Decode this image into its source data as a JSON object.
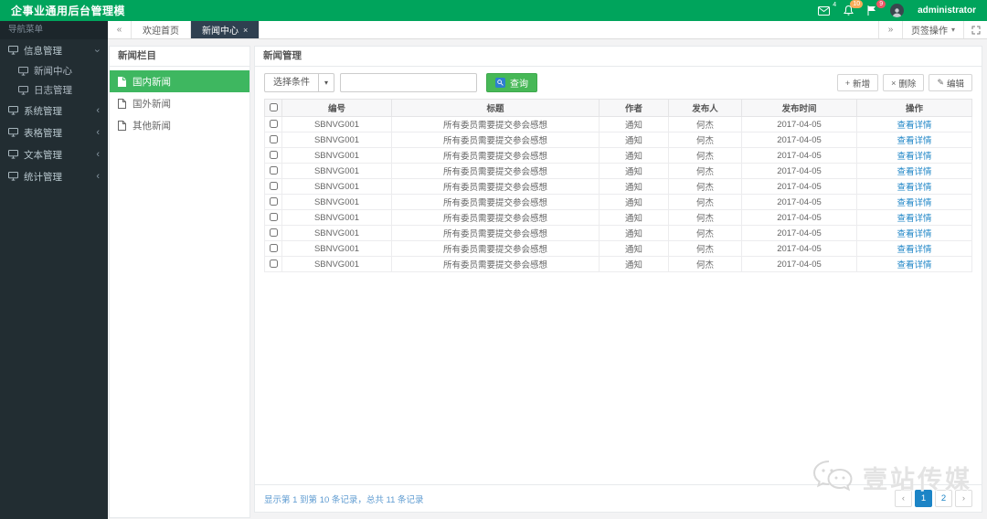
{
  "topbar": {
    "title": "企事业通用后台管理模",
    "mail_count": "4",
    "bell_count": "10",
    "flag_count": "9",
    "username": "administrator"
  },
  "sidebar": {
    "header": "导航菜单",
    "items": [
      {
        "label": "信息管理",
        "expanded": true,
        "children": [
          "新闻中心",
          "日志管理"
        ]
      },
      {
        "label": "系统管理",
        "expanded": false
      },
      {
        "label": "表格管理",
        "expanded": false
      },
      {
        "label": "文本管理",
        "expanded": false
      },
      {
        "label": "统计管理",
        "expanded": false
      }
    ]
  },
  "tabbar": {
    "scroll_left": "«",
    "scroll_right": "»",
    "tabs": [
      {
        "label": "欢迎首页",
        "active": false,
        "closable": false
      },
      {
        "label": "新闻中心",
        "active": true,
        "closable": true,
        "close_glyph": "×"
      }
    ],
    "ops_label": "页签操作",
    "ops_caret": "▾"
  },
  "news_panel": {
    "title": "新闻栏目",
    "items": [
      {
        "label": "国内新闻",
        "active": true
      },
      {
        "label": "国外新闻",
        "active": false
      },
      {
        "label": "其他新闻",
        "active": false
      }
    ]
  },
  "main": {
    "title": "新闻管理",
    "filter_label": "选择条件",
    "search_value": "",
    "query_button": "查询",
    "add_button": "新增",
    "delete_button": "删除",
    "edit_button": "编辑",
    "add_glyph": "+",
    "delete_glyph": "×",
    "edit_glyph": "✎",
    "table": {
      "headers": [
        "编号",
        "标题",
        "作者",
        "发布人",
        "发布时间",
        "操作"
      ],
      "rows": [
        {
          "id": "SBNVG001",
          "title": "所有委员需要提交参会感想",
          "author": "通知",
          "publisher": "何杰",
          "date": "2017-04-05",
          "action": "查看详情"
        },
        {
          "id": "SBNVG001",
          "title": "所有委员需要提交参会感想",
          "author": "通知",
          "publisher": "何杰",
          "date": "2017-04-05",
          "action": "查看详情"
        },
        {
          "id": "SBNVG001",
          "title": "所有委员需要提交参会感想",
          "author": "通知",
          "publisher": "何杰",
          "date": "2017-04-05",
          "action": "查看详情"
        },
        {
          "id": "SBNVG001",
          "title": "所有委员需要提交参会感想",
          "author": "通知",
          "publisher": "何杰",
          "date": "2017-04-05",
          "action": "查看详情"
        },
        {
          "id": "SBNVG001",
          "title": "所有委员需要提交参会感想",
          "author": "通知",
          "publisher": "何杰",
          "date": "2017-04-05",
          "action": "查看详情"
        },
        {
          "id": "SBNVG001",
          "title": "所有委员需要提交参会感想",
          "author": "通知",
          "publisher": "何杰",
          "date": "2017-04-05",
          "action": "查看详情"
        },
        {
          "id": "SBNVG001",
          "title": "所有委员需要提交参会感想",
          "author": "通知",
          "publisher": "何杰",
          "date": "2017-04-05",
          "action": "查看详情"
        },
        {
          "id": "SBNVG001",
          "title": "所有委员需要提交参会感想",
          "author": "通知",
          "publisher": "何杰",
          "date": "2017-04-05",
          "action": "查看详情"
        },
        {
          "id": "SBNVG001",
          "title": "所有委员需要提交参会感想",
          "author": "通知",
          "publisher": "何杰",
          "date": "2017-04-05",
          "action": "查看详情"
        },
        {
          "id": "SBNVG001",
          "title": "所有委员需要提交参会感想",
          "author": "通知",
          "publisher": "何杰",
          "date": "2017-04-05",
          "action": "查看详情"
        }
      ]
    },
    "footer_info": "显示第 1 到第 10 条记录，总共 11 条记录",
    "pagination": {
      "prev": "‹",
      "pages": [
        "1",
        "2"
      ],
      "active_page": "1",
      "next": "›"
    }
  },
  "watermark": {
    "text": "壹站传媒"
  },
  "colors": {
    "topbar_green": "#00a45c",
    "accent_green": "#47b857",
    "selected_green": "#3eb760",
    "link_blue": "#1c84c6",
    "badge_orange": "#f8ac59",
    "badge_red": "#ed5565",
    "sidebar_dark": "#222d32",
    "active_tab_dark": "#2f4050"
  }
}
